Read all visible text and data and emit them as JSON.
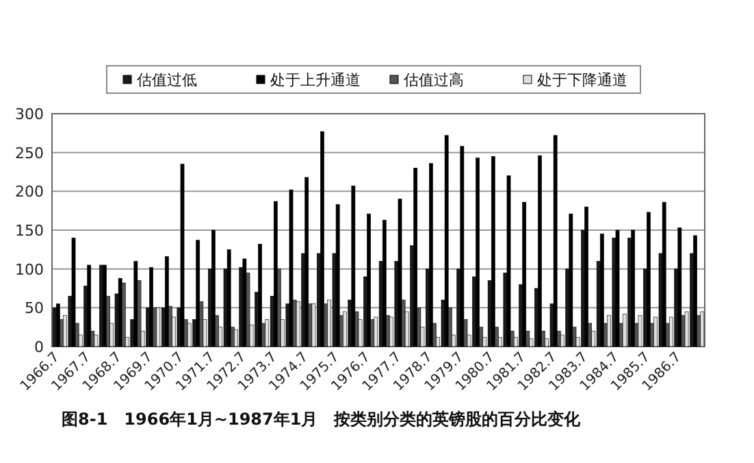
{
  "chart_data": {
    "type": "bar",
    "title": "图8-1　1966年1月~1987年1月　按类别分类的英镑股的百分比变化",
    "categories": [
      "1966.7",
      null,
      "1967.7",
      null,
      "1968.7",
      null,
      "1969.7",
      null,
      "1970.7",
      null,
      "1971.7",
      null,
      "1972.7",
      null,
      "1973.7",
      null,
      "1974.7",
      null,
      "1975.7",
      null,
      "1976.7",
      null,
      "1977.7",
      null,
      "1978.7",
      null,
      "1979.7",
      null,
      "1980.7",
      null,
      "1981.7",
      null,
      "1982.7",
      null,
      "1983.7",
      null,
      "1984.7",
      null,
      "1985.7",
      null,
      "1986.7",
      null
    ],
    "series": [
      {
        "name": "估值过低",
        "color": "#1a1a1a",
        "values": [
          50,
          65,
          78,
          105,
          68,
          35,
          50,
          50,
          50,
          35,
          100,
          100,
          102,
          70,
          65,
          55,
          120,
          120,
          120,
          60,
          90,
          110,
          110,
          130,
          100,
          60,
          100,
          90,
          85,
          95,
          80,
          75,
          55,
          100,
          150,
          110,
          140,
          140,
          100,
          120,
          100,
          120
        ]
      },
      {
        "name": "处于上升通道",
        "color": "#000000",
        "values": [
          55,
          140,
          105,
          105,
          88,
          110,
          102,
          116,
          235,
          137,
          150,
          125,
          113,
          132,
          187,
          202,
          218,
          277,
          183,
          207,
          171,
          163,
          190,
          230,
          236,
          272,
          258,
          243,
          245,
          220,
          186,
          246,
          272,
          171,
          180,
          145,
          150,
          150,
          173,
          186,
          153,
          143
        ]
      },
      {
        "name": "估值过高",
        "color": "#555555",
        "values": [
          35,
          30,
          20,
          65,
          82,
          85,
          50,
          52,
          35,
          58,
          40,
          25,
          95,
          30,
          100,
          60,
          55,
          55,
          40,
          45,
          35,
          40,
          60,
          50,
          30,
          50,
          35,
          25,
          25,
          20,
          20,
          20,
          20,
          25,
          30,
          30,
          30,
          30,
          30,
          30,
          40,
          40
        ]
      },
      {
        "name": "处于下降通道",
        "color": "#e0e0e0",
        "values": [
          40,
          15,
          15,
          30,
          12,
          20,
          50,
          38,
          30,
          35,
          25,
          22,
          28,
          35,
          35,
          58,
          55,
          60,
          45,
          35,
          38,
          38,
          45,
          25,
          12,
          15,
          15,
          12,
          12,
          12,
          10,
          10,
          15,
          12,
          20,
          40,
          42,
          40,
          38,
          38,
          45,
          45
        ]
      }
    ],
    "ylim": [
      0,
      300
    ],
    "yticks": [
      0,
      50,
      100,
      150,
      200,
      250,
      300
    ],
    "grid": "y",
    "legend": "top"
  }
}
